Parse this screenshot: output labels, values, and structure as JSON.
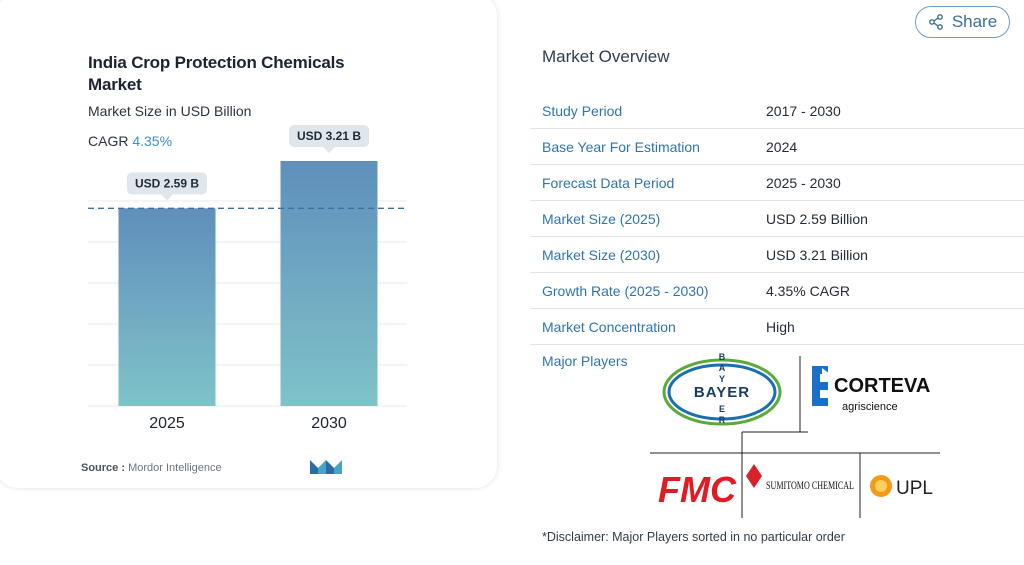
{
  "chart_data": {
    "type": "bar",
    "title": "India Crop Protection Chemicals Market",
    "subtitle": "Market Size in USD Billion",
    "cagr_label": "CAGR",
    "cagr_value": "4.35%",
    "categories": [
      "2025",
      "2030"
    ],
    "values": [
      2.59,
      3.21
    ],
    "data_labels": [
      "USD 2.59 B",
      "USD 3.21 B"
    ],
    "unit": "USD Billion",
    "ylim": [
      0,
      3.21
    ],
    "grid": true,
    "colors": {
      "bar_top": "#5f8fbb",
      "bar_bottom": "#7fc3c9",
      "dashed_line": "#3f6f9f"
    }
  },
  "source": {
    "label": "Source :",
    "text": "Mordor Intelligence"
  },
  "share": {
    "label": "Share",
    "icon": "share-icon"
  },
  "overview": {
    "title": "Market Overview",
    "rows": [
      {
        "key": "Study Period",
        "value": "2017 - 2030"
      },
      {
        "key": "Base Year For Estimation",
        "value": "2024"
      },
      {
        "key": "Forecast Data Period",
        "value": "2025 - 2030"
      },
      {
        "key": "Market Size (2025)",
        "value": "USD 2.59 Billion"
      },
      {
        "key": "Market Size (2030)",
        "value": "USD 3.21 Billion"
      },
      {
        "key": "Growth Rate (2025 - 2030)",
        "value": "4.35% CAGR"
      },
      {
        "key": "Market Concentration",
        "value": "High"
      }
    ],
    "major_players_label": "Major Players",
    "players": [
      "BAYER",
      "CORTEVA",
      "agriscience",
      "FMC",
      "SUMITOMO CHEMICAL",
      "UPL"
    ],
    "disclaimer": "*Disclaimer: Major Players sorted in no particular order"
  }
}
